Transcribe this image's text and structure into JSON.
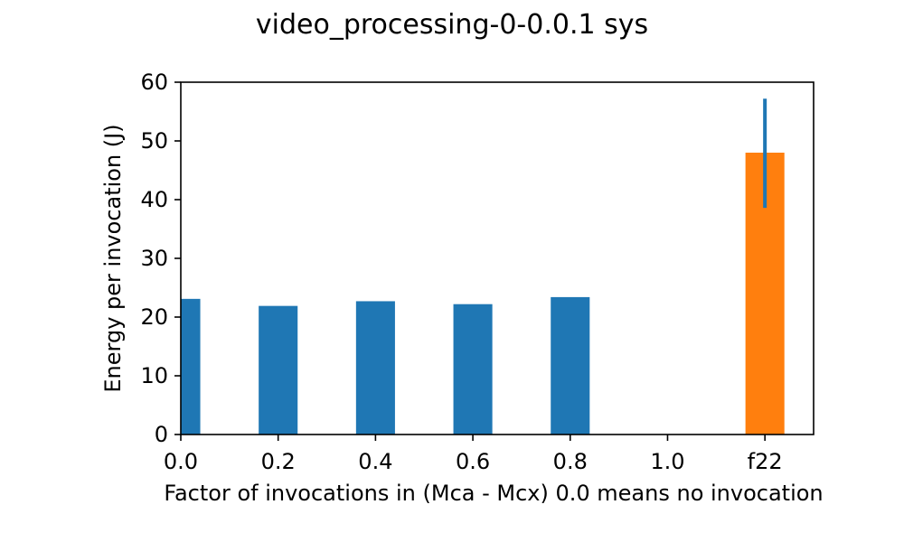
{
  "chart_data": {
    "type": "bar",
    "title": "video_processing-0-0.0.1 sys",
    "xlabel": "Factor of invocations in (Mca - Mcx) 0.0 means no invocation",
    "ylabel": "Energy per invocation (J)",
    "xlim": [
      0.0,
      1.3
    ],
    "ylim": [
      0,
      60
    ],
    "x_ticks": [
      {
        "pos": 0.0,
        "label": "0.0"
      },
      {
        "pos": 0.2,
        "label": "0.2"
      },
      {
        "pos": 0.4,
        "label": "0.4"
      },
      {
        "pos": 0.6,
        "label": "0.6"
      },
      {
        "pos": 0.8,
        "label": "0.8"
      },
      {
        "pos": 1.0,
        "label": "1.0"
      },
      {
        "pos": 1.2,
        "label": "f22"
      }
    ],
    "y_ticks": [
      0,
      10,
      20,
      30,
      40,
      50,
      60
    ],
    "grid": false,
    "legend": "none",
    "series": [
      {
        "color": "#1f77b4",
        "bar_width": 0.08,
        "points": [
          {
            "x": 0.0,
            "value": 23.1
          },
          {
            "x": 0.2,
            "value": 21.9
          },
          {
            "x": 0.4,
            "value": 22.7
          },
          {
            "x": 0.6,
            "value": 22.2
          },
          {
            "x": 0.8,
            "value": 23.4
          }
        ]
      },
      {
        "color": "#ff7f0e",
        "bar_width": 0.08,
        "points": [
          {
            "x": 1.2,
            "value": 48.0
          }
        ]
      }
    ],
    "error_bars": [
      {
        "x": 1.2,
        "low": 38.6,
        "high": 57.2,
        "color": "#1f77b4"
      }
    ]
  }
}
